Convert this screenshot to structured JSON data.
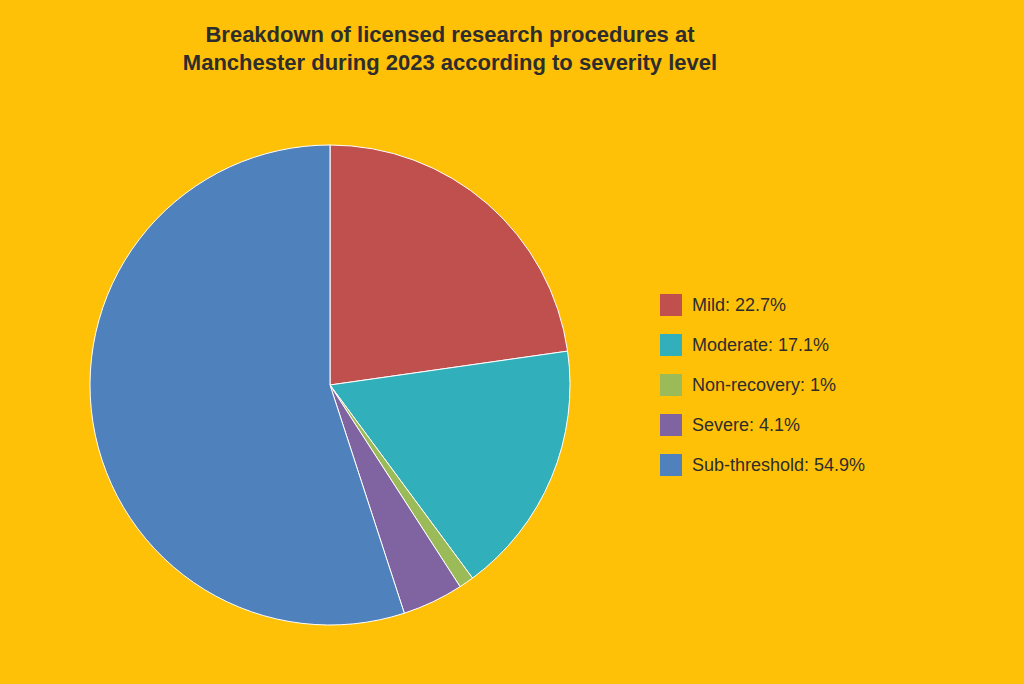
{
  "chart_data": {
    "type": "pie",
    "title": "Breakdown of licensed research procedures at\nManchester during 2023 according to severity level",
    "categories": [
      "Mild: 22.7%",
      "Moderate: 17.1%",
      "Non-recovery: 1%",
      "Severe: 4.1%",
      "Sub-threshold: 54.9%"
    ],
    "values": [
      22.7,
      17.1,
      1.0,
      4.1,
      54.9
    ],
    "colors": [
      "#C0504D",
      "#31AFBB",
      "#9BBB59",
      "#8064A2",
      "#4F81BD"
    ],
    "legend": "right"
  }
}
